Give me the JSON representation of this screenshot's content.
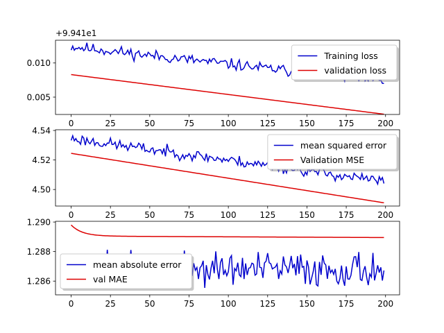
{
  "chart_data": [
    {
      "type": "line",
      "offset_text": "+9.941e1",
      "xlim": [
        -9.95,
        208.95
      ],
      "ylim": [
        0.00246,
        0.01333
      ],
      "x_ticks": [
        0,
        25,
        50,
        75,
        100,
        125,
        150,
        175,
        200
      ],
      "y_ticks": [
        {
          "v": 0.005,
          "label": "0.005"
        },
        {
          "v": 0.01,
          "label": "0.010"
        }
      ],
      "legend_placement": "upper right",
      "series": [
        {
          "name": "Training loss",
          "color": "#0000cc",
          "noisy": true,
          "start": 0.0124,
          "end": 0.0073,
          "noise": 0.0009,
          "seed": 11
        },
        {
          "name": "validation loss",
          "color": "#dd0000",
          "noisy": false,
          "start": 0.0083,
          "end": 0.0025
        }
      ]
    },
    {
      "type": "line",
      "xlim": [
        -9.95,
        208.95
      ],
      "ylim": [
        4.4888,
        4.5405
      ],
      "x_ticks": [
        0,
        25,
        50,
        75,
        100,
        125,
        150,
        175,
        200
      ],
      "y_ticks": [
        {
          "v": 4.5,
          "label": "4.50"
        },
        {
          "v": 4.52,
          "label": "4.52"
        },
        {
          "v": 4.54,
          "label": "4.54"
        }
      ],
      "legend_placement": "upper right",
      "series": [
        {
          "name": "mean squared error",
          "color": "#0000cc",
          "noisy": true,
          "start": 4.5345,
          "end": 4.5055,
          "noise": 0.0042,
          "seed": 23
        },
        {
          "name": "Validation MSE",
          "color": "#dd0000",
          "noisy": false,
          "start": 4.5245,
          "end": 4.491
        }
      ]
    },
    {
      "type": "line",
      "xlim": [
        -9.95,
        208.95
      ],
      "ylim": [
        1.28507,
        1.29005
      ],
      "x_ticks": [
        0,
        25,
        50,
        75,
        100,
        125,
        150,
        175,
        200
      ],
      "y_ticks": [
        {
          "v": 1.286,
          "label": "1.286"
        },
        {
          "v": 1.288,
          "label": "1.288"
        },
        {
          "v": 1.29,
          "label": "1.290"
        }
      ],
      "legend_placement": "lower left",
      "series": [
        {
          "name": "mean absolute error",
          "color": "#0000cc",
          "noisy": true,
          "start": 1.2868,
          "end": 1.2868,
          "noise": 0.0013,
          "seed": 37
        },
        {
          "name": "val MAE",
          "color": "#dd0000",
          "noisy": false,
          "decay": true,
          "start": 1.2898,
          "plateau": 1.28905,
          "end": 1.28895
        }
      ]
    }
  ]
}
